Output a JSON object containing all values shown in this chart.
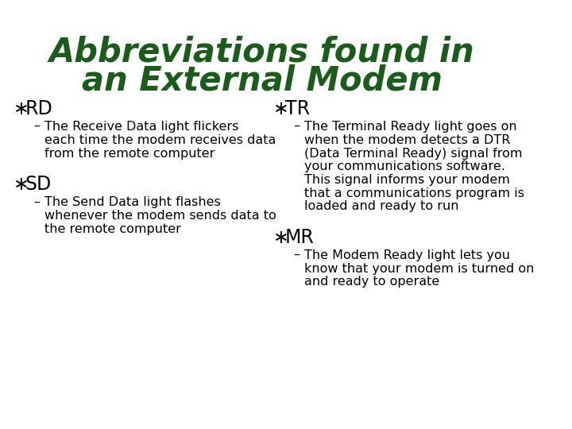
{
  "title_line1": "Abbreviations found in",
  "title_line2": "an External Modem",
  "title_color": "#1a5c1a",
  "bg_color": "#ffffff",
  "text_color": "#000000",
  "bullet_color": "#000000",
  "left_col": {
    "bullets": [
      {
        "header": "RD",
        "sub": "The Receive Data light flickers each time the modem receives data from the remote computer"
      },
      {
        "header": "SD",
        "sub": "The Send Data light flashes whenever the modem sends data to the remote computer"
      }
    ]
  },
  "right_col": {
    "bullets": [
      {
        "header": "TR",
        "sub": "The Terminal Ready light goes on when the modem detects a DTR (Data Terminal Ready) signal from your communications software. This signal informs your modem that a communications program is loaded and ready to run"
      },
      {
        "header": "MR",
        "sub": "The Modem Ready light lets you know that your modem is turned on and ready to operate"
      }
    ]
  },
  "title_fontsize": 30,
  "header_fontsize": 17,
  "body_fontsize": 11.5,
  "bullet_symbol": "∗",
  "dash_symbol": "–"
}
